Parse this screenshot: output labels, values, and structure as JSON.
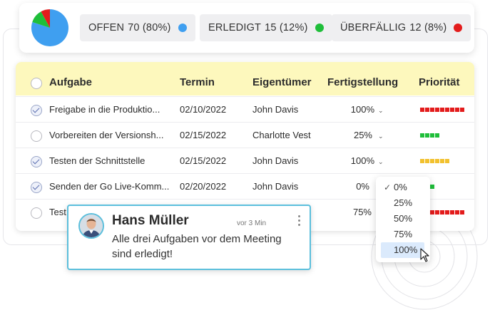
{
  "summary": {
    "pie": [
      {
        "value": 80,
        "color": "#3f9ff0"
      },
      {
        "value": 12,
        "color": "#1fbe3a"
      },
      {
        "value": 8,
        "color": "#e31c1c"
      }
    ],
    "chips": [
      {
        "name": "OFFEN",
        "count": "70 (80%)",
        "color": "#3f9ff0"
      },
      {
        "name": "ERLEDIGT",
        "count": "15 (12%)",
        "color": "#1fbe3a"
      },
      {
        "name": "ÜBERFÄLLIG",
        "count": "12 (8%)",
        "color": "#e31c1c"
      }
    ]
  },
  "table": {
    "headers": {
      "task": "Aufgabe",
      "due": "Termin",
      "owner": "Eigentümer",
      "completion": "Fertigstellung",
      "priority": "Priorität"
    },
    "rows": [
      {
        "task": "Freigabe in die Produktio...",
        "due": "02/10/2022",
        "owner": "John Davis",
        "completion": "100%",
        "done": true,
        "priority_level": 9,
        "priority_color": "#e31c1c"
      },
      {
        "task": "Vorbereiten der Versionsh...",
        "due": "02/15/2022",
        "owner": "Charlotte Vest",
        "completion": "25%",
        "done": false,
        "priority_level": 4,
        "priority_color": "#1fbe3a"
      },
      {
        "task": "Testen der Schnittstelle",
        "due": "02/15/2022",
        "owner": "John Davis",
        "completion": "100%",
        "done": true,
        "priority_level": 6,
        "priority_color": "#f2c12e"
      },
      {
        "task": "Senden der Go Live-Komm...",
        "due": "02/20/2022",
        "owner": "John Davis",
        "completion": "0%",
        "done": true,
        "priority_level": 1,
        "priority_color": "#1fbe3a"
      },
      {
        "task": "Test",
        "due": "",
        "owner": "",
        "completion": "75%",
        "done": false,
        "priority_level": 9,
        "priority_color": "#e31c1c"
      }
    ]
  },
  "dropdown": {
    "options": [
      "0%",
      "25%",
      "50%",
      "75%",
      "100%"
    ],
    "checked": "0%",
    "highlighted": "100%"
  },
  "comment": {
    "author": "Hans Müller",
    "time": "vor 3 Min",
    "message": "Alle drei Aufgaben vor dem Meeting sind erledigt!"
  }
}
